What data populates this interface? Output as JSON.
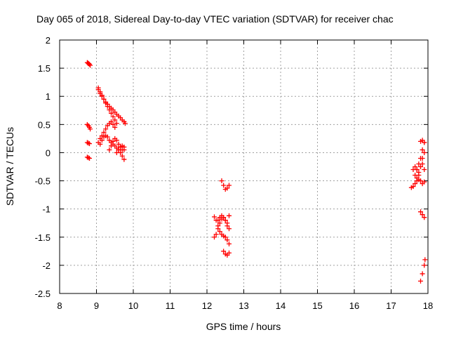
{
  "chart_data": {
    "type": "scatter",
    "title": "Day 065 of 2018, Sidereal Day-to-day VTEC variation (SDTVAR) for receiver chac",
    "xlabel": "GPS time / hours",
    "ylabel": "SDTVAR / TECUs",
    "xlim": [
      8,
      18
    ],
    "ylim": [
      -2.5,
      2
    ],
    "xticks": [
      8,
      9,
      10,
      11,
      12,
      13,
      14,
      15,
      16,
      17,
      18
    ],
    "yticks": [
      -2.5,
      -2,
      -1.5,
      -1,
      -0.5,
      0,
      0.5,
      1,
      1.5,
      2
    ],
    "ytick_labels": [
      "-2.5",
      "-2",
      "-1.5",
      "-1",
      "-0.5",
      "0",
      "0.5",
      "1",
      "1.5",
      "2"
    ],
    "grid": true,
    "marker": "+",
    "color": "#ff0000",
    "series": [
      {
        "name": "SDTVAR",
        "segments": [
          {
            "x": [
              8.75,
              8.77,
              8.79,
              8.81,
              8.83
            ],
            "y": [
              1.6,
              1.59,
              1.58,
              1.57,
              1.55
            ]
          },
          {
            "x": [
              8.75,
              8.78,
              8.81,
              8.83
            ],
            "y": [
              0.5,
              0.48,
              0.45,
              0.42
            ]
          },
          {
            "x": [
              8.75,
              8.78,
              8.81
            ],
            "y": [
              0.18,
              0.17,
              0.16
            ]
          },
          {
            "x": [
              8.75,
              8.78,
              8.81
            ],
            "y": [
              -0.08,
              -0.09,
              -0.1
            ]
          },
          {
            "x": [
              9.05,
              9.1,
              9.15,
              9.2,
              9.25,
              9.3,
              9.35,
              9.4,
              9.45,
              9.5,
              9.55,
              9.6,
              9.65,
              9.7,
              9.75,
              9.78
            ],
            "y": [
              1.12,
              1.05,
              1.0,
              0.95,
              0.9,
              0.86,
              0.82,
              0.79,
              0.76,
              0.72,
              0.68,
              0.65,
              0.62,
              0.58,
              0.55,
              0.52
            ]
          },
          {
            "x": [
              9.05,
              9.1,
              9.15,
              9.2,
              9.25,
              9.3,
              9.35,
              9.4,
              9.45,
              9.5,
              9.55
            ],
            "y": [
              1.15,
              1.08,
              1.02,
              0.95,
              0.88,
              0.82,
              0.76,
              0.7,
              0.64,
              0.58,
              0.52
            ]
          },
          {
            "x": [
              9.05,
              9.1,
              9.15,
              9.2,
              9.25,
              9.3,
              9.35,
              9.4,
              9.45,
              9.5
            ],
            "y": [
              0.18,
              0.25,
              0.3,
              0.36,
              0.42,
              0.48,
              0.52,
              0.55,
              0.5,
              0.45
            ]
          },
          {
            "x": [
              9.1,
              9.15,
              9.2,
              9.25,
              9.3,
              9.35,
              9.4,
              9.45,
              9.5,
              9.55,
              9.6,
              9.65,
              9.7,
              9.75
            ],
            "y": [
              0.15,
              0.22,
              0.28,
              0.3,
              0.28,
              0.22,
              0.18,
              0.15,
              0.12,
              0.08,
              0.05,
              0.0,
              -0.06,
              -0.12
            ]
          },
          {
            "x": [
              9.35,
              9.4,
              9.45,
              9.5,
              9.55,
              9.6,
              9.65,
              9.7,
              9.75
            ],
            "y": [
              0.05,
              0.12,
              0.2,
              0.25,
              0.22,
              0.15,
              0.1,
              0.05,
              0.05
            ]
          },
          {
            "x": [
              9.55,
              9.6,
              9.65,
              9.7,
              9.75
            ],
            "y": [
              0.0,
              0.05,
              0.1,
              0.12,
              0.1
            ]
          },
          {
            "x": [
              12.2,
              12.25,
              12.3,
              12.35,
              12.4,
              12.45,
              12.5,
              12.55,
              12.6
            ],
            "y": [
              -1.14,
              -1.2,
              -1.3,
              -1.4,
              -1.45,
              -1.48,
              -1.5,
              -1.55,
              -1.62
            ]
          },
          {
            "x": [
              12.2,
              12.25,
              12.3,
              12.35,
              12.4,
              12.45,
              12.5,
              12.55,
              12.6
            ],
            "y": [
              -1.5,
              -1.45,
              -1.35,
              -1.25,
              -1.18,
              -1.15,
              -1.2,
              -1.3,
              -1.35
            ]
          },
          {
            "x": [
              12.3,
              12.35,
              12.4,
              12.45,
              12.5,
              12.55,
              12.6
            ],
            "y": [
              -1.2,
              -1.15,
              -1.12,
              -1.15,
              -1.2,
              -1.25,
              -1.12
            ]
          },
          {
            "x": [
              12.45,
              12.5,
              12.55,
              12.6
            ],
            "y": [
              -1.75,
              -1.8,
              -1.82,
              -1.78
            ]
          },
          {
            "x": [
              12.4,
              12.45,
              12.5,
              12.55,
              12.6
            ],
            "y": [
              -0.5,
              -0.58,
              -0.65,
              -0.63,
              -0.58
            ]
          },
          {
            "x": [
              17.55,
              17.6,
              17.65,
              17.7,
              17.75,
              17.8,
              17.85,
              17.9
            ],
            "y": [
              -0.62,
              -0.6,
              -0.55,
              -0.5,
              -0.48,
              -0.5,
              -0.55,
              -0.52
            ]
          },
          {
            "x": [
              17.6,
              17.65,
              17.7,
              17.75
            ],
            "y": [
              -0.3,
              -0.25,
              -0.3,
              -0.4
            ]
          },
          {
            "x": [
              17.65,
              17.7,
              17.75,
              17.8,
              17.85,
              17.9
            ],
            "y": [
              -0.4,
              -0.3,
              -0.2,
              -0.1,
              0.05,
              0.18
            ]
          },
          {
            "x": [
              17.7,
              17.75,
              17.8,
              17.85,
              17.9
            ],
            "y": [
              -0.45,
              -0.35,
              -0.25,
              -0.1,
              0.0
            ]
          },
          {
            "x": [
              17.8,
              17.85,
              17.9
            ],
            "y": [
              0.2,
              0.22,
              0.18
            ]
          },
          {
            "x": [
              17.85,
              17.9
            ],
            "y": [
              -0.2,
              -0.3
            ]
          },
          {
            "x": [
              17.8,
              17.85,
              17.9
            ],
            "y": [
              -1.05,
              -1.1,
              -1.15
            ]
          },
          {
            "x": [
              17.8,
              17.85,
              17.9,
              17.92
            ],
            "y": [
              -2.28,
              -2.15,
              -2.0,
              -1.9
            ]
          }
        ]
      }
    ]
  }
}
